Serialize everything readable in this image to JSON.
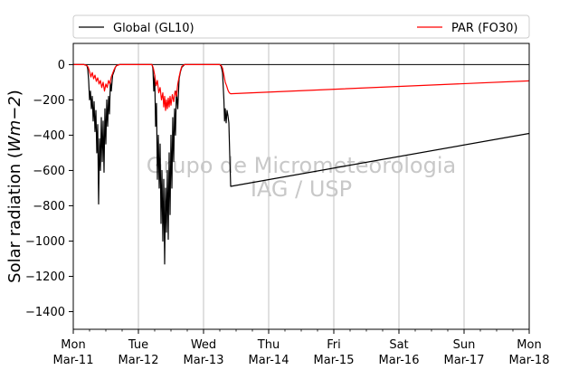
{
  "chart_data": {
    "type": "line",
    "title": "",
    "xlabel": "",
    "ylabel": "Solar radiation (Wm−2)",
    "ylabel_main": "Solar radiation (",
    "ylabel_unit_base": "Wm",
    "ylabel_unit_exp": "−2",
    "ylabel_close": ")",
    "xlim": [
      "2019-03-11",
      "2019-03-18"
    ],
    "ylim": [
      -1500,
      120
    ],
    "yticks": [
      0,
      -200,
      -400,
      -600,
      -800,
      -1000,
      -1200,
      -1400
    ],
    "ytick_labels": [
      "0",
      "−200",
      "−400",
      "−600",
      "−800",
      "−1000",
      "−1200",
      "−1400"
    ],
    "xticks": [
      {
        "date": "2019-03-11",
        "line1": "Mon",
        "line2": "Mar-11"
      },
      {
        "date": "2019-03-12",
        "line1": "Tue",
        "line2": "Mar-12"
      },
      {
        "date": "2019-03-13",
        "line1": "Wed",
        "line2": "Mar-13"
      },
      {
        "date": "2019-03-14",
        "line1": "Thu",
        "line2": "Mar-14"
      },
      {
        "date": "2019-03-15",
        "line1": "Fri",
        "line2": "Mar-15"
      },
      {
        "date": "2019-03-16",
        "line1": "Sat",
        "line2": "Mar-16"
      },
      {
        "date": "2019-03-17",
        "line1": "Sun",
        "line2": "Mar-17"
      },
      {
        "date": "2019-03-18",
        "line1": "Mon",
        "line2": "Mar-18"
      }
    ],
    "grid": "vertical",
    "zero_line": true,
    "legend": "top, above plot",
    "watermark": [
      "Grupo de Micrometeorologia",
      "IAG / USP"
    ],
    "series": [
      {
        "name": "Global (GL10)",
        "color": "#000000",
        "points": [
          [
            "2019-03-11 00:00",
            0
          ],
          [
            "2019-03-11 04:00",
            0
          ],
          [
            "2019-03-11 05:00",
            -5
          ],
          [
            "2019-03-11 05:20",
            -25
          ],
          [
            "2019-03-11 05:40",
            -90
          ],
          [
            "2019-03-11 06:00",
            -200
          ],
          [
            "2019-03-11 06:20",
            -150
          ],
          [
            "2019-03-11 06:40",
            -250
          ],
          [
            "2019-03-11 07:00",
            -180
          ],
          [
            "2019-03-11 07:20",
            -320
          ],
          [
            "2019-03-11 07:40",
            -210
          ],
          [
            "2019-03-11 08:00",
            -380
          ],
          [
            "2019-03-11 08:20",
            -260
          ],
          [
            "2019-03-11 08:40",
            -500
          ],
          [
            "2019-03-11 09:00",
            -340
          ],
          [
            "2019-03-11 09:20",
            -790
          ],
          [
            "2019-03-11 09:40",
            -420
          ],
          [
            "2019-03-11 10:00",
            -600
          ],
          [
            "2019-03-11 10:20",
            -300
          ],
          [
            "2019-03-11 10:40",
            -550
          ],
          [
            "2019-03-11 11:00",
            -320
          ],
          [
            "2019-03-11 11:20",
            -610
          ],
          [
            "2019-03-11 11:40",
            -250
          ],
          [
            "2019-03-11 12:00",
            -450
          ],
          [
            "2019-03-11 12:20",
            -200
          ],
          [
            "2019-03-11 12:40",
            -350
          ],
          [
            "2019-03-11 13:00",
            -180
          ],
          [
            "2019-03-11 13:20",
            -280
          ],
          [
            "2019-03-11 13:40",
            -100
          ],
          [
            "2019-03-11 14:00",
            -150
          ],
          [
            "2019-03-11 14:30",
            -60
          ],
          [
            "2019-03-11 15:00",
            -40
          ],
          [
            "2019-03-11 15:30",
            -15
          ],
          [
            "2019-03-11 16:00",
            -5
          ],
          [
            "2019-03-11 17:00",
            0
          ],
          [
            "2019-03-12 05:00",
            0
          ],
          [
            "2019-03-12 05:20",
            -20
          ],
          [
            "2019-03-12 05:40",
            -150
          ],
          [
            "2019-03-12 06:00",
            -60
          ],
          [
            "2019-03-12 06:20",
            -350
          ],
          [
            "2019-03-12 06:40",
            -220
          ],
          [
            "2019-03-12 07:00",
            -650
          ],
          [
            "2019-03-12 07:20",
            -400
          ],
          [
            "2019-03-12 07:40",
            -700
          ],
          [
            "2019-03-12 08:00",
            -450
          ],
          [
            "2019-03-12 08:20",
            -900
          ],
          [
            "2019-03-12 08:40",
            -600
          ],
          [
            "2019-03-12 09:00",
            -1000
          ],
          [
            "2019-03-12 09:20",
            -650
          ],
          [
            "2019-03-12 09:40",
            -1130
          ],
          [
            "2019-03-12 10:00",
            -700
          ],
          [
            "2019-03-12 10:20",
            -950
          ],
          [
            "2019-03-12 10:40",
            -600
          ],
          [
            "2019-03-12 11:00",
            -990
          ],
          [
            "2019-03-12 11:20",
            -500
          ],
          [
            "2019-03-12 11:40",
            -850
          ],
          [
            "2019-03-12 12:00",
            -400
          ],
          [
            "2019-03-12 12:20",
            -700
          ],
          [
            "2019-03-12 12:40",
            -300
          ],
          [
            "2019-03-12 13:00",
            -550
          ],
          [
            "2019-03-12 13:20",
            -250
          ],
          [
            "2019-03-12 13:40",
            -400
          ],
          [
            "2019-03-12 14:00",
            -150
          ],
          [
            "2019-03-12 14:30",
            -250
          ],
          [
            "2019-03-12 15:00",
            -80
          ],
          [
            "2019-03-12 15:30",
            -40
          ],
          [
            "2019-03-12 16:00",
            -15
          ],
          [
            "2019-03-12 17:00",
            0
          ],
          [
            "2019-03-13 06:00",
            0
          ],
          [
            "2019-03-13 06:30",
            -10
          ],
          [
            "2019-03-13 07:00",
            -45
          ],
          [
            "2019-03-13 07:30",
            -200
          ],
          [
            "2019-03-13 07:45",
            -320
          ],
          [
            "2019-03-13 08:00",
            -250
          ],
          [
            "2019-03-13 08:20",
            -330
          ],
          [
            "2019-03-13 08:40",
            -260
          ],
          [
            "2019-03-13 09:00",
            -290
          ],
          [
            "2019-03-13 09:20",
            -330
          ],
          [
            "2019-03-13 09:40",
            -520
          ],
          [
            "2019-03-13 10:00",
            -690
          ],
          [
            "2019-03-18 00:00",
            -390
          ]
        ]
      },
      {
        "name": "PAR (FO30)",
        "color": "#ff0000",
        "points": [
          [
            "2019-03-11 00:00",
            0
          ],
          [
            "2019-03-11 04:00",
            0
          ],
          [
            "2019-03-11 05:00",
            -5
          ],
          [
            "2019-03-11 05:30",
            -15
          ],
          [
            "2019-03-11 06:00",
            -40
          ],
          [
            "2019-03-11 06:30",
            -70
          ],
          [
            "2019-03-11 07:00",
            -45
          ],
          [
            "2019-03-11 07:30",
            -80
          ],
          [
            "2019-03-11 08:00",
            -60
          ],
          [
            "2019-03-11 08:30",
            -95
          ],
          [
            "2019-03-11 09:00",
            -75
          ],
          [
            "2019-03-11 09:30",
            -110
          ],
          [
            "2019-03-11 10:00",
            -90
          ],
          [
            "2019-03-11 10:30",
            -130
          ],
          [
            "2019-03-11 11:00",
            -100
          ],
          [
            "2019-03-11 11:30",
            -150
          ],
          [
            "2019-03-11 12:00",
            -110
          ],
          [
            "2019-03-11 12:30",
            -130
          ],
          [
            "2019-03-11 13:00",
            -90
          ],
          [
            "2019-03-11 13:30",
            -110
          ],
          [
            "2019-03-11 14:00",
            -70
          ],
          [
            "2019-03-11 14:30",
            -50
          ],
          [
            "2019-03-11 15:00",
            -30
          ],
          [
            "2019-03-11 15:30",
            -15
          ],
          [
            "2019-03-11 16:00",
            -5
          ],
          [
            "2019-03-11 17:00",
            0
          ],
          [
            "2019-03-12 05:00",
            0
          ],
          [
            "2019-03-12 05:30",
            -20
          ],
          [
            "2019-03-12 06:00",
            -60
          ],
          [
            "2019-03-12 06:30",
            -120
          ],
          [
            "2019-03-12 07:00",
            -90
          ],
          [
            "2019-03-12 07:30",
            -160
          ],
          [
            "2019-03-12 08:00",
            -130
          ],
          [
            "2019-03-12 08:30",
            -200
          ],
          [
            "2019-03-12 09:00",
            -160
          ],
          [
            "2019-03-12 09:20",
            -240
          ],
          [
            "2019-03-12 09:40",
            -180
          ],
          [
            "2019-03-12 10:00",
            -260
          ],
          [
            "2019-03-12 10:20",
            -200
          ],
          [
            "2019-03-12 10:40",
            -250
          ],
          [
            "2019-03-12 11:00",
            -190
          ],
          [
            "2019-03-12 11:20",
            -240
          ],
          [
            "2019-03-12 11:40",
            -180
          ],
          [
            "2019-03-12 12:00",
            -230
          ],
          [
            "2019-03-12 12:30",
            -170
          ],
          [
            "2019-03-12 13:00",
            -210
          ],
          [
            "2019-03-12 13:30",
            -150
          ],
          [
            "2019-03-12 14:00",
            -180
          ],
          [
            "2019-03-12 14:30",
            -110
          ],
          [
            "2019-03-12 15:00",
            -70
          ],
          [
            "2019-03-12 15:30",
            -35
          ],
          [
            "2019-03-12 16:00",
            -10
          ],
          [
            "2019-03-12 17:00",
            0
          ],
          [
            "2019-03-13 06:00",
            0
          ],
          [
            "2019-03-13 06:30",
            -5
          ],
          [
            "2019-03-13 07:00",
            -20
          ],
          [
            "2019-03-13 07:30",
            -60
          ],
          [
            "2019-03-13 08:00",
            -100
          ],
          [
            "2019-03-13 08:30",
            -120
          ],
          [
            "2019-03-13 09:00",
            -145
          ],
          [
            "2019-03-13 09:30",
            -160
          ],
          [
            "2019-03-13 10:00",
            -165
          ],
          [
            "2019-03-18 00:00",
            -92
          ]
        ]
      }
    ]
  }
}
